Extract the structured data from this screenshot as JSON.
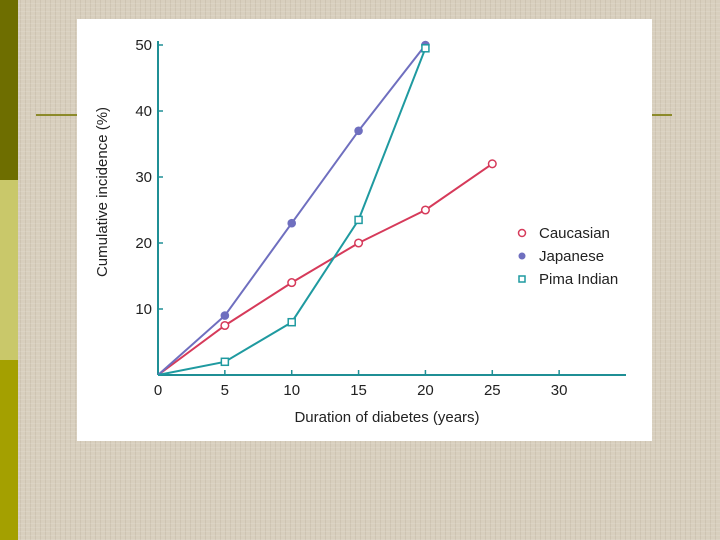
{
  "slide": {
    "colors": {
      "stripe_dark": "#6e6e00",
      "stripe_mid": "#c9c86a",
      "stripe_low": "#a4a000",
      "accent_line": "#8c8a2a",
      "panel": "#ffffff"
    }
  },
  "chart_data": {
    "type": "line",
    "title": "",
    "xlabel": "Duration of diabetes (years)",
    "ylabel": "Cumulative incidence (%)",
    "xlim": [
      0,
      35
    ],
    "ylim": [
      0,
      50
    ],
    "xticks": [
      0,
      5,
      10,
      15,
      20,
      25,
      30
    ],
    "yticks": [
      10,
      20,
      30,
      40,
      50
    ],
    "grid": false,
    "legend_position": "right",
    "series": [
      {
        "name": "Caucasian",
        "color": "#d63a5a",
        "marker": "open-circle",
        "points": [
          [
            0,
            0
          ],
          [
            5,
            7.5
          ],
          [
            10,
            14
          ],
          [
            15,
            20
          ],
          [
            20,
            25
          ],
          [
            25,
            32
          ]
        ]
      },
      {
        "name": "Japanese",
        "color": "#6f6fbf",
        "marker": "filled-circle",
        "points": [
          [
            0,
            0
          ],
          [
            5,
            9
          ],
          [
            10,
            23
          ],
          [
            15,
            37
          ],
          [
            20,
            50
          ]
        ]
      },
      {
        "name": "Pima Indian",
        "color": "#1f9aa0",
        "marker": "open-square",
        "points": [
          [
            0,
            0
          ],
          [
            5,
            2
          ],
          [
            10,
            8
          ],
          [
            15,
            23.5
          ],
          [
            20,
            49.5
          ]
        ]
      }
    ]
  }
}
